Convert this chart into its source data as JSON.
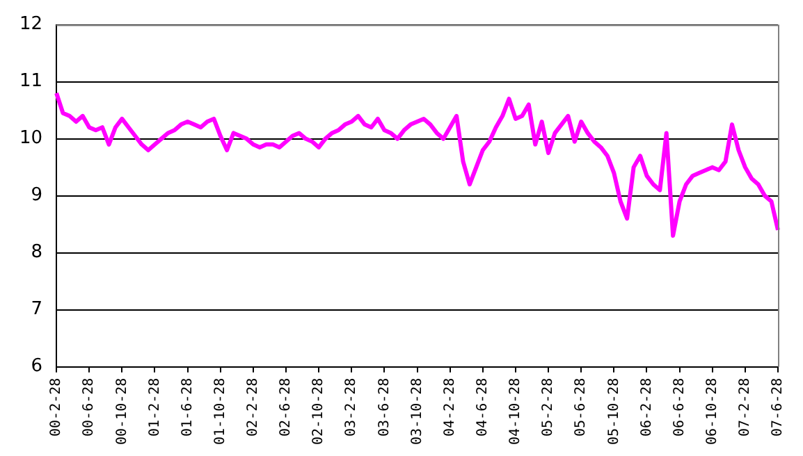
{
  "chart_data": {
    "type": "line",
    "categories": [
      "00-2-28",
      null,
      null,
      null,
      null,
      "00-6-28",
      null,
      null,
      null,
      null,
      "00-10-28",
      null,
      null,
      null,
      null,
      "01-2-28",
      null,
      null,
      null,
      null,
      "01-6-28",
      null,
      null,
      null,
      null,
      "01-10-28",
      null,
      null,
      null,
      null,
      "02-2-28",
      null,
      null,
      null,
      null,
      "02-6-28",
      null,
      null,
      null,
      null,
      "02-10-28",
      null,
      null,
      null,
      null,
      "03-2-28",
      null,
      null,
      null,
      null,
      "03-6-28",
      null,
      null,
      null,
      null,
      "03-10-28",
      null,
      null,
      null,
      null,
      "04-2-28",
      null,
      null,
      null,
      null,
      "04-6-28",
      null,
      null,
      null,
      null,
      "04-10-28",
      null,
      null,
      null,
      null,
      "05-2-28",
      null,
      null,
      null,
      null,
      "05-6-28",
      null,
      null,
      null,
      null,
      "05-10-28",
      null,
      null,
      null,
      null,
      "06-2-28",
      null,
      null,
      null,
      null,
      "06-6-28",
      null,
      null,
      null,
      null,
      "06-10-28",
      null,
      null,
      null,
      null,
      "07-2-28",
      null,
      null,
      null,
      null,
      "07-6-28"
    ],
    "series": [
      {
        "color": "#ff00ff",
        "values": [
          10.8,
          10.45,
          10.4,
          10.3,
          10.4,
          10.2,
          10.15,
          10.2,
          9.9,
          10.2,
          10.35,
          10.2,
          10.05,
          9.9,
          9.8,
          9.9,
          10.0,
          10.1,
          10.15,
          10.25,
          10.3,
          10.25,
          10.2,
          10.3,
          10.35,
          10.05,
          9.8,
          10.1,
          10.05,
          10.0,
          9.9,
          9.85,
          9.9,
          9.9,
          9.85,
          9.95,
          10.05,
          10.1,
          10.0,
          9.95,
          9.85,
          10.0,
          10.1,
          10.15,
          10.25,
          10.3,
          10.4,
          10.25,
          10.2,
          10.35,
          10.15,
          10.1,
          10.0,
          10.15,
          10.25,
          10.3,
          10.35,
          10.25,
          10.1,
          10.0,
          10.2,
          10.4,
          9.6,
          9.2,
          9.5,
          9.8,
          9.95,
          10.2,
          10.4,
          10.7,
          10.35,
          10.4,
          10.6,
          9.9,
          10.3,
          9.75,
          10.1,
          10.25,
          10.4,
          9.95,
          10.3,
          10.1,
          9.95,
          9.85,
          9.7,
          9.4,
          8.9,
          8.6,
          9.5,
          9.7,
          9.35,
          9.2,
          9.1,
          10.1,
          8.3,
          8.9,
          9.2,
          9.35,
          9.4,
          9.45,
          9.5,
          9.45,
          9.6,
          10.25,
          9.8,
          9.5,
          9.3,
          9.2,
          9.0,
          8.9,
          8.4
        ]
      }
    ],
    "ylim": [
      6,
      12
    ],
    "yticks": [
      6,
      7,
      8,
      9,
      10,
      11,
      12
    ],
    "grid": "y",
    "marker": "none"
  }
}
